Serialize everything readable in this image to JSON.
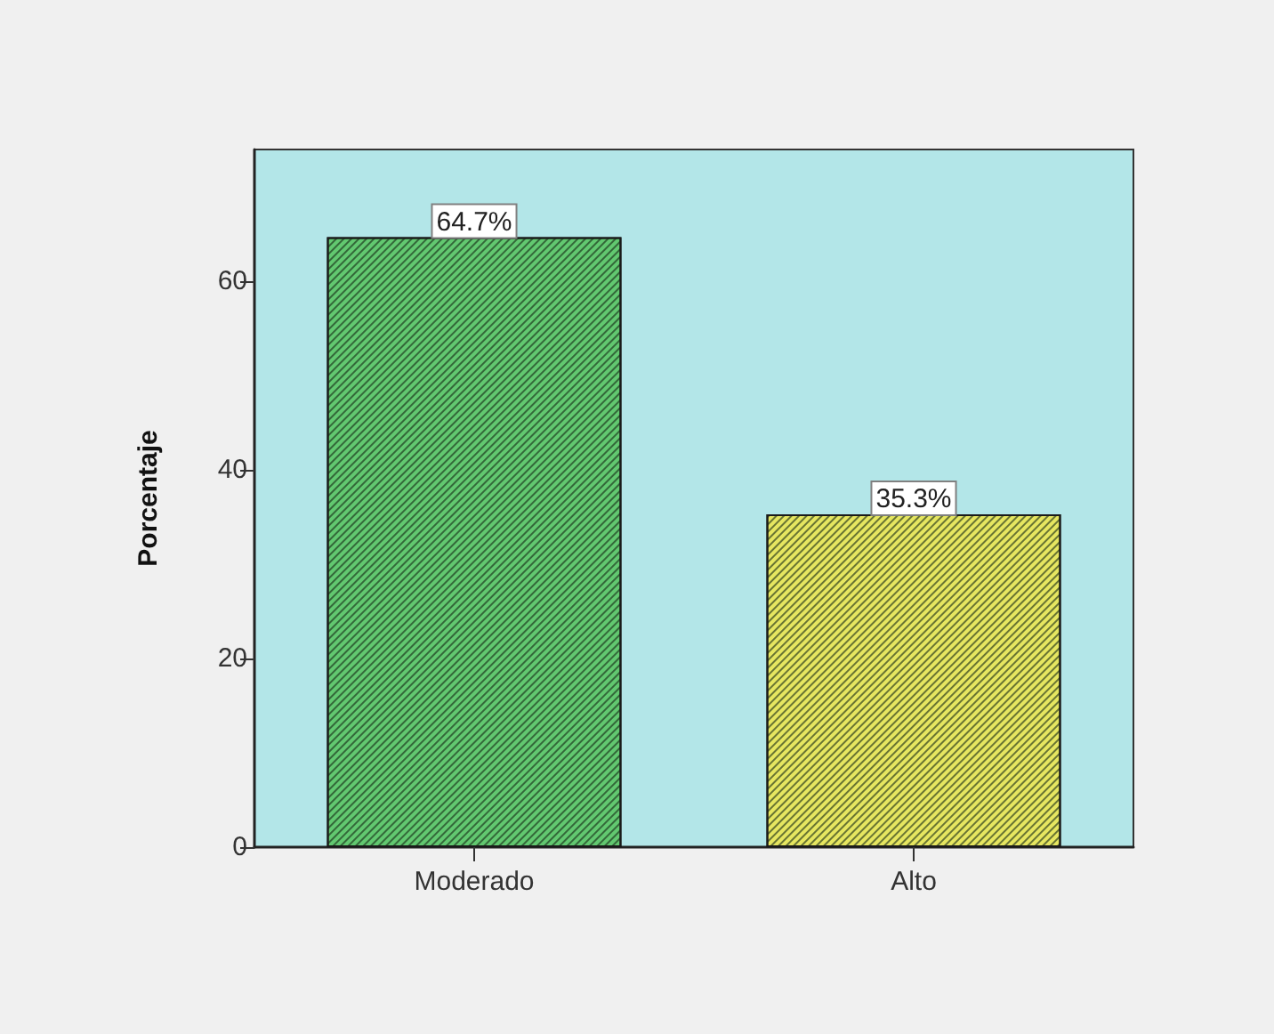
{
  "chart_data": {
    "type": "bar",
    "ylabel": "Porcentaje",
    "categories": [
      "Moderado",
      "Alto"
    ],
    "values": [
      64.7,
      35.3
    ],
    "colors": [
      "#62c870",
      "#e6e660"
    ],
    "value_labels": [
      "64.7%",
      "35.3%"
    ],
    "ylim": [
      0,
      74
    ],
    "yticks": [
      0,
      20,
      40,
      60
    ]
  }
}
